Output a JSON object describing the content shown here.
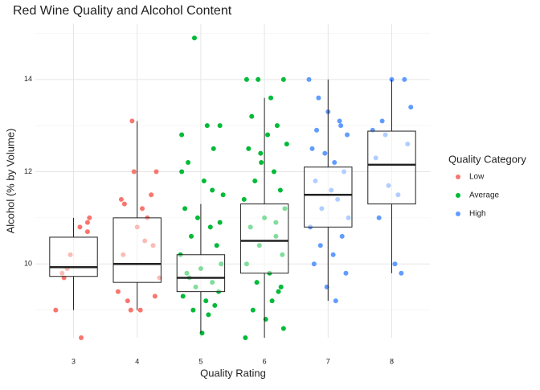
{
  "chart_data": {
    "type": "box",
    "title": "Red Wine Quality and Alcohol Content",
    "x_label": "Quality Rating",
    "y_label": "Alcohol (% by Volume)",
    "legend_title": "Quality Category",
    "legend_position": "right",
    "grid": true,
    "xlim": [
      2.4,
      8.6
    ],
    "ylim": [
      8.4,
      15.2
    ],
    "xticks": [
      3,
      4,
      5,
      6,
      7,
      8
    ],
    "yticks": [
      10,
      12,
      14
    ],
    "boxes": [
      {
        "x": 3,
        "whisker_low": 9.0,
        "q1": 9.73,
        "median": 9.93,
        "q3": 10.58,
        "whisker_high": 11.0
      },
      {
        "x": 4,
        "whisker_low": 9.0,
        "q1": 9.6,
        "median": 10.0,
        "q3": 11.0,
        "whisker_high": 13.1
      },
      {
        "x": 5,
        "whisker_low": 8.5,
        "q1": 9.4,
        "median": 9.7,
        "q3": 10.2,
        "whisker_high": 11.3
      },
      {
        "x": 6,
        "whisker_low": 8.4,
        "q1": 9.8,
        "median": 10.5,
        "q3": 11.3,
        "whisker_high": 13.6
      },
      {
        "x": 7,
        "whisker_low": 9.2,
        "q1": 10.8,
        "median": 11.5,
        "q3": 12.1,
        "whisker_high": 14.0
      },
      {
        "x": 8,
        "whisker_low": 9.8,
        "q1": 11.3,
        "median": 12.15,
        "q3": 12.88,
        "whisker_high": 14.0
      }
    ],
    "series": [
      {
        "name": "Low",
        "color": "#F8766D",
        "x": [
          2.72,
          3.1,
          3.22,
          2.9,
          3.22,
          3.12,
          2.82,
          3.25,
          2.95,
          2.85,
          3.75,
          3.92,
          4.22,
          4.3,
          3.95,
          4.12,
          3.85,
          4.05,
          4.25,
          3.8,
          4.16,
          3.7,
          4.35,
          4.0,
          3.9,
          4.08,
          3.78,
          4.28
        ],
        "values": [
          9.0,
          10.8,
          10.9,
          9.9,
          10.7,
          8.4,
          9.8,
          11.0,
          10.2,
          9.7,
          11.4,
          13.1,
          11.5,
          12.0,
          12.0,
          10.5,
          9.2,
          9.0,
          10.4,
          11.3,
          11.0,
          9.4,
          9.7,
          10.8,
          9.0,
          11.2,
          10.2,
          9.3
        ]
      },
      {
        "name": "Average",
        "color": "#00BA38",
        "x": [
          4.9,
          5.1,
          5.3,
          4.7,
          4.8,
          5.2,
          5.05,
          4.75,
          5.35,
          4.95,
          5.15,
          4.85,
          5.25,
          4.68,
          5.32,
          5.0,
          4.78,
          5.18,
          4.92,
          5.28,
          4.72,
          5.08,
          4.88,
          5.22,
          5.12,
          4.82,
          5.02,
          5.3,
          4.7,
          5.18,
          5.72,
          5.9,
          6.1,
          6.3,
          5.8,
          6.2,
          6.05,
          5.75,
          6.35,
          5.95,
          6.15,
          5.85,
          6.25,
          5.68,
          6.32,
          6.0,
          5.78,
          6.18,
          5.92,
          6.28,
          5.72,
          6.08,
          5.88,
          6.22,
          6.12,
          5.82,
          6.02,
          6.3,
          5.7,
          6.18,
          6.26,
          5.94
        ],
        "values": [
          14.9,
          13.0,
          13.0,
          12.8,
          12.2,
          12.5,
          11.8,
          11.2,
          11.5,
          11.0,
          10.8,
          10.6,
          10.4,
          10.2,
          10.0,
          9.9,
          9.8,
          9.6,
          9.5,
          9.4,
          9.3,
          9.2,
          9.0,
          9.1,
          8.9,
          9.7,
          8.5,
          10.9,
          12.0,
          11.6,
          14.0,
          14.0,
          13.6,
          14.0,
          13.2,
          13.0,
          12.8,
          12.5,
          12.6,
          12.2,
          12.0,
          11.8,
          11.6,
          11.4,
          11.2,
          11.0,
          10.8,
          10.6,
          10.4,
          10.2,
          10.0,
          9.8,
          9.6,
          9.4,
          9.2,
          9.0,
          8.8,
          8.6,
          8.4,
          10.9,
          9.5,
          12.4
        ]
      },
      {
        "name": "High",
        "color": "#619CFF",
        "x": [
          6.7,
          6.85,
          7.0,
          7.2,
          7.3,
          6.75,
          6.95,
          7.1,
          7.25,
          6.8,
          7.05,
          7.15,
          6.9,
          7.32,
          6.72,
          7.22,
          6.88,
          7.08,
          6.78,
          7.28,
          6.98,
          7.12,
          6.82,
          7.18,
          7.7,
          7.85,
          8.0,
          8.2,
          8.3,
          7.75,
          7.95,
          8.1,
          8.25,
          7.8,
          8.05,
          8.15,
          7.9
        ],
        "values": [
          14.0,
          13.6,
          13.3,
          13.0,
          12.8,
          12.5,
          12.4,
          12.2,
          12.0,
          11.8,
          11.6,
          11.4,
          11.2,
          11.0,
          10.8,
          10.6,
          10.4,
          10.2,
          10.0,
          9.8,
          9.5,
          9.2,
          12.9,
          13.1,
          12.9,
          13.1,
          14.0,
          14.0,
          13.4,
          12.3,
          11.7,
          11.5,
          12.6,
          11.0,
          10.0,
          9.8,
          12.8
        ]
      }
    ]
  }
}
